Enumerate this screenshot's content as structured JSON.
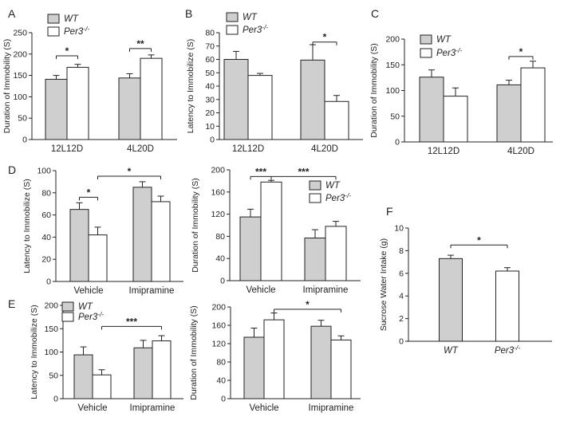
{
  "colors": {
    "wt": "#cfcfcf",
    "per3": "#ffffff",
    "stroke": "#222222"
  },
  "chart_data": [
    {
      "id": "A",
      "panel_label": "A",
      "type": "bar",
      "categories": [
        "12L12D",
        "4L20D"
      ],
      "series": [
        {
          "name": "WT",
          "values": [
            141,
            144
          ],
          "errors": [
            9,
            10
          ]
        },
        {
          "name": "Per3-/-",
          "values": [
            169,
            190
          ],
          "errors": [
            7,
            8
          ]
        }
      ],
      "ylabel": "Duration of Immobility (S)",
      "ylim": [
        0,
        250
      ],
      "yticks": [
        0,
        50,
        100,
        150,
        200,
        250
      ],
      "legend": {
        "position": "top-left",
        "entries": [
          "WT",
          "Per3-/-"
        ]
      },
      "significance": [
        {
          "label": "*",
          "from": [
            0,
            0
          ],
          "to": [
            0,
            1
          ],
          "y": 196
        },
        {
          "label": "**",
          "from": [
            1,
            0
          ],
          "to": [
            1,
            1
          ],
          "y": 213
        }
      ]
    },
    {
      "id": "B",
      "panel_label": "B",
      "type": "bar",
      "categories": [
        "12L12D",
        "4L20D"
      ],
      "series": [
        {
          "name": "WT",
          "values": [
            60,
            59.5
          ],
          "errors": [
            6,
            11.5
          ]
        },
        {
          "name": "Per3-/-",
          "values": [
            48,
            28.5
          ],
          "errors": [
            1.5,
            4.5
          ]
        }
      ],
      "ylabel": "Latency to Immobilize (S)",
      "ylim": [
        0,
        80
      ],
      "yticks": [
        0,
        10,
        20,
        30,
        40,
        50,
        60,
        70,
        80
      ],
      "legend": {
        "position": "top-left",
        "entries": [
          "WT",
          "Per3-/-"
        ]
      },
      "significance": [
        {
          "label": "*",
          "from": [
            1,
            0
          ],
          "to": [
            1,
            1
          ],
          "y": 73
        }
      ]
    },
    {
      "id": "C",
      "panel_label": "C",
      "type": "bar",
      "categories": [
        "12L12D",
        "4L20D"
      ],
      "series": [
        {
          "name": "WT",
          "values": [
            126,
            111
          ],
          "errors": [
            14,
            9
          ]
        },
        {
          "name": "Per3-/-",
          "values": [
            89,
            144
          ],
          "errors": [
            16,
            13
          ]
        }
      ],
      "ylabel": "Duration of Immobility (S)",
      "ylim": [
        0,
        200
      ],
      "yticks": [
        0,
        50,
        100,
        150,
        200
      ],
      "legend": {
        "position": "top-left",
        "entries": [
          "WT",
          "Per3-/-"
        ]
      },
      "significance": [
        {
          "label": "*",
          "from": [
            1,
            0
          ],
          "to": [
            1,
            1
          ],
          "y": 166
        }
      ]
    },
    {
      "id": "D1",
      "panel_label": "D",
      "type": "bar",
      "categories": [
        "Vehicle",
        "Imipramine"
      ],
      "series": [
        {
          "name": "WT",
          "values": [
            65,
            85
          ],
          "errors": [
            6,
            5
          ]
        },
        {
          "name": "Per3-/-",
          "values": [
            42,
            72
          ],
          "errors": [
            7,
            5
          ]
        }
      ],
      "ylabel": "Latency to Immobilize (S)",
      "ylim": [
        0,
        100
      ],
      "yticks": [
        0,
        20,
        40,
        60,
        80,
        100
      ],
      "legend": null,
      "significance": [
        {
          "label": "*",
          "from": [
            0,
            0
          ],
          "to": [
            0,
            1
          ],
          "y": 76
        },
        {
          "label": "*",
          "from": [
            0,
            1
          ],
          "to": [
            1,
            1
          ],
          "y": 95
        }
      ]
    },
    {
      "id": "D2",
      "panel_label": "",
      "type": "bar",
      "categories": [
        "Vehicle",
        "Imipramine"
      ],
      "series": [
        {
          "name": "WT",
          "values": [
            115,
            77
          ],
          "errors": [
            14,
            15
          ]
        },
        {
          "name": "Per3-/-",
          "values": [
            178,
            98
          ],
          "errors": [
            3,
            9
          ]
        }
      ],
      "ylabel": "Duration of Immobility (S)",
      "ylim": [
        0,
        200
      ],
      "yticks": [
        0,
        40,
        80,
        120,
        160,
        200
      ],
      "legend": {
        "position": "right",
        "entries": [
          "WT",
          "Per3-/-"
        ]
      },
      "significance": [
        {
          "label": "***",
          "from": [
            0,
            0
          ],
          "to": [
            0,
            1
          ],
          "y": 188
        },
        {
          "label": "***",
          "from": [
            0,
            1
          ],
          "to": [
            1,
            1
          ],
          "y": 188
        }
      ]
    },
    {
      "id": "E1",
      "panel_label": "E",
      "type": "bar",
      "categories": [
        "Vehicle",
        "Imipramine"
      ],
      "series": [
        {
          "name": "WT",
          "values": [
            94,
            109
          ],
          "errors": [
            17,
            16
          ]
        },
        {
          "name": "Per3-/-",
          "values": [
            51,
            124
          ],
          "errors": [
            11,
            11
          ]
        }
      ],
      "ylabel": "Latency to Immobilize (S)",
      "ylim": [
        0,
        200
      ],
      "yticks": [
        0,
        50,
        100,
        150,
        200
      ],
      "legend": {
        "position": "top-left",
        "entries": [
          "WT",
          "Per3-/-"
        ]
      },
      "significance": [
        {
          "label": "***",
          "from": [
            0,
            1
          ],
          "to": [
            1,
            1
          ],
          "y": 155
        }
      ]
    },
    {
      "id": "E2",
      "panel_label": "",
      "type": "bar",
      "categories": [
        "Vehicle",
        "Imipramine"
      ],
      "series": [
        {
          "name": "WT",
          "values": [
            134,
            158
          ],
          "errors": [
            20,
            13
          ]
        },
        {
          "name": "Per3-/-",
          "values": [
            172,
            128
          ],
          "errors": [
            15,
            9
          ]
        }
      ],
      "ylabel": "Duration of Immobility (S)",
      "ylim": [
        0,
        200
      ],
      "yticks": [
        0,
        40,
        80,
        120,
        160,
        200
      ],
      "legend": null,
      "significance": [
        {
          "label": "*",
          "from": [
            0,
            1
          ],
          "to": [
            1,
            1
          ],
          "y": 195
        }
      ]
    },
    {
      "id": "F",
      "panel_label": "F",
      "type": "bar",
      "categories": [
        "WT",
        "Per3-/-"
      ],
      "series": [
        {
          "name": "Sucrose Water Intake",
          "values": [
            7.3,
            6.2
          ],
          "errors": [
            0.3,
            0.3
          ]
        }
      ],
      "ylabel": "Sucrose Water Intake (g)",
      "ylim": [
        0,
        10
      ],
      "yticks": [
        0,
        2,
        4,
        6,
        8,
        10
      ],
      "legend": null,
      "significance": [
        {
          "label": "*",
          "from": [
            0,
            0
          ],
          "to": [
            1,
            0
          ],
          "y": 8.5
        }
      ]
    }
  ]
}
